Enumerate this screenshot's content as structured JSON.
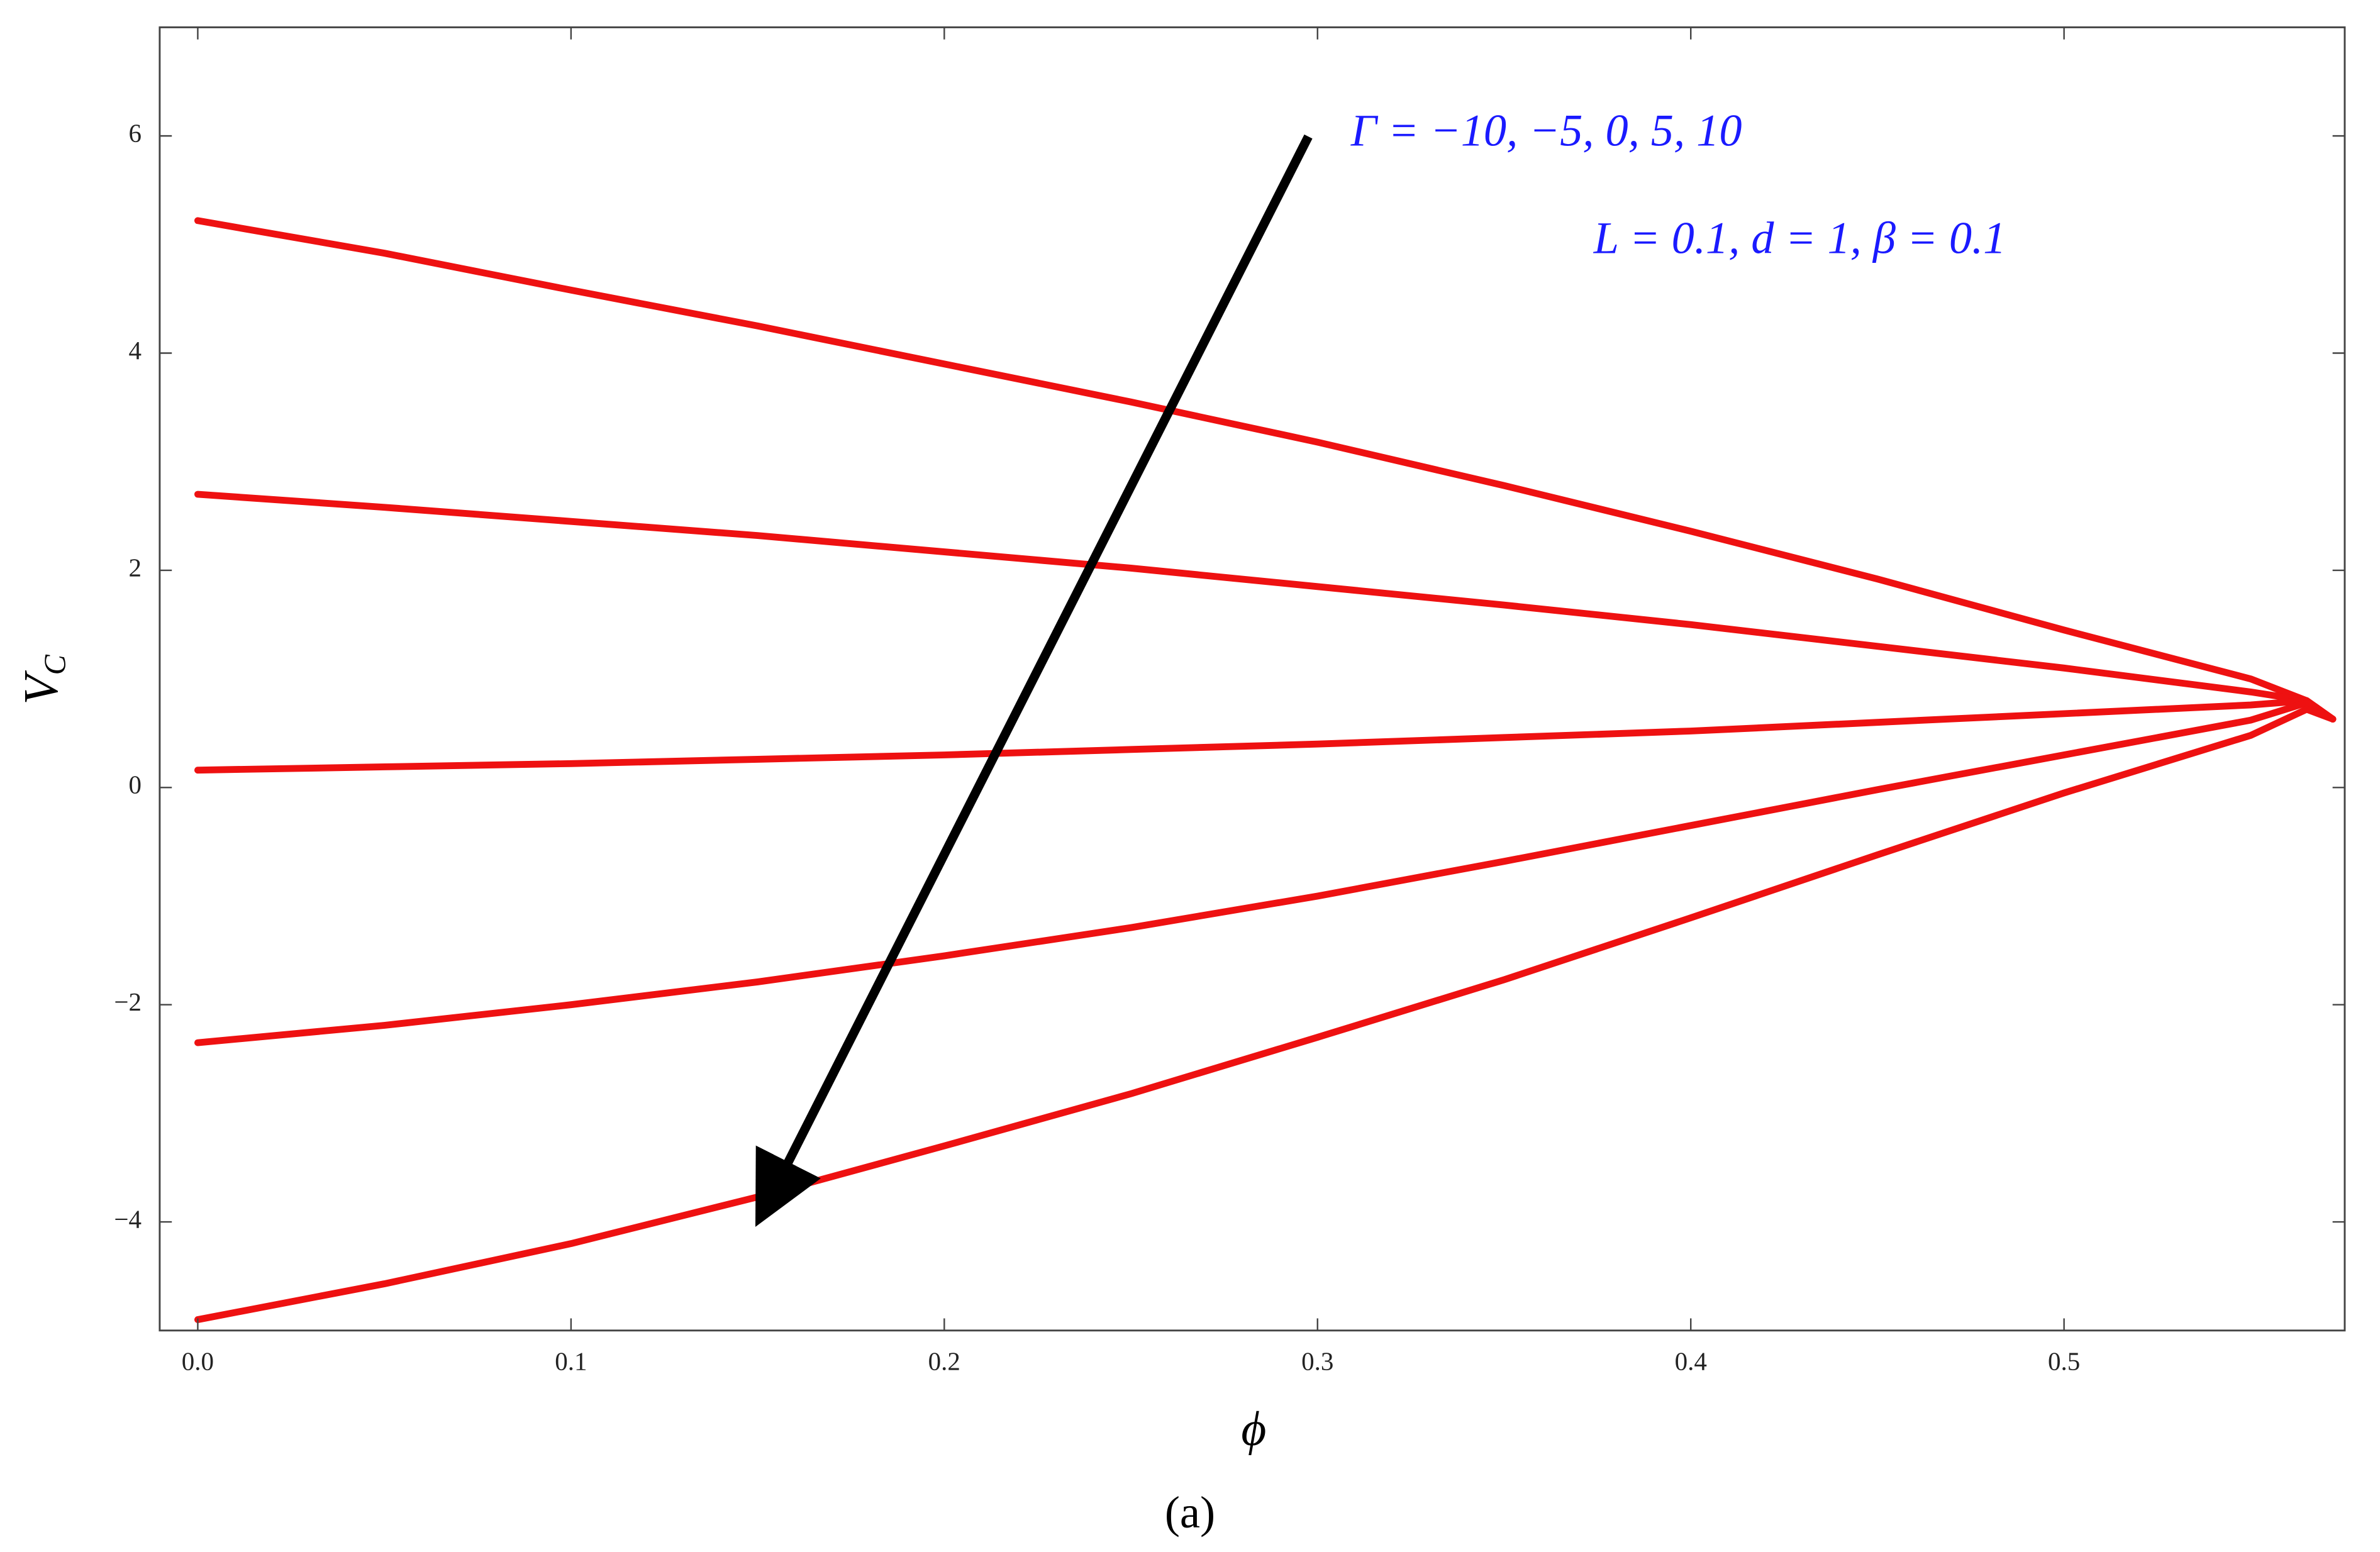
{
  "chart_data": {
    "type": "line",
    "xlabel": "ϕ",
    "ylabel": "V",
    "ylabel_sub": "C",
    "caption": "(a)",
    "annotations": [
      "Γ  =  −10, −5, 0, 5, 10",
      "L = 0.1, d = 1, β = 0.1"
    ],
    "x": [
      0,
      0.05,
      0.1,
      0.15,
      0.2,
      0.25,
      0.3,
      0.35,
      0.4,
      0.45,
      0.5,
      0.55,
      0.565,
      0.572
    ],
    "series": [
      {
        "color": "#ee1111",
        "values": [
          5.22,
          4.92,
          4.58,
          4.25,
          3.9,
          3.55,
          3.18,
          2.78,
          2.36,
          1.92,
          1.45,
          1.0,
          0.8,
          0.63
        ]
      },
      {
        "color": "#ee1111",
        "values": [
          2.7,
          2.58,
          2.45,
          2.32,
          2.17,
          2.02,
          1.85,
          1.68,
          1.5,
          1.3,
          1.1,
          0.88,
          0.8,
          0.63
        ]
      },
      {
        "color": "#ee1111",
        "values": [
          0.16,
          0.19,
          0.22,
          0.26,
          0.3,
          0.35,
          0.4,
          0.46,
          0.52,
          0.6,
          0.68,
          0.76,
          0.8,
          0.63
        ]
      },
      {
        "color": "#ee1111",
        "values": [
          -2.35,
          -2.19,
          -2.0,
          -1.79,
          -1.55,
          -1.29,
          -1.0,
          -0.68,
          -0.35,
          -0.02,
          0.3,
          0.62,
          0.78,
          0.63
        ]
      },
      {
        "color": "#ee1111",
        "values": [
          -4.9,
          -4.57,
          -4.2,
          -3.77,
          -3.3,
          -2.82,
          -2.3,
          -1.77,
          -1.2,
          -0.62,
          -0.05,
          0.48,
          0.72,
          0.63
        ]
      }
    ],
    "xlim": [
      -0.0102,
      0.5752
    ],
    "ylim": [
      -5,
      7
    ],
    "xticks": [
      {
        "value": 0,
        "label": "0.0"
      },
      {
        "value": 0.1,
        "label": "0.1"
      },
      {
        "value": 0.2,
        "label": "0.2"
      },
      {
        "value": 0.3,
        "label": "0.3"
      },
      {
        "value": 0.4,
        "label": "0.4"
      },
      {
        "value": 0.5,
        "label": "0.5"
      }
    ],
    "yticks": [
      {
        "value": -4,
        "label": "−4"
      },
      {
        "value": -2,
        "label": "−2"
      },
      0,
      2,
      4,
      6
    ]
  }
}
